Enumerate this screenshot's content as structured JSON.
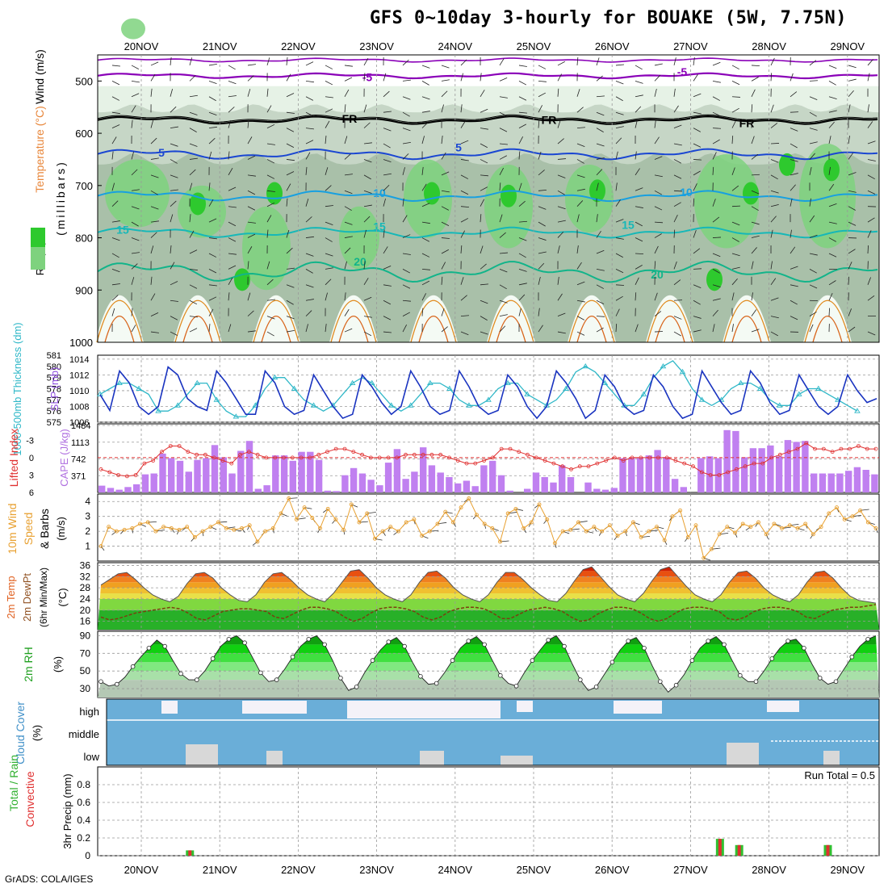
{
  "title": "GFS 0~10day 3-hourly for BOUAKE (5W, 7.75N)",
  "credit": "GrADS: COLA/IGES",
  "colors": {
    "rh1": "#e6f2e6",
    "rh2": "#c6d6c6",
    "rh3": "#a9c0a9",
    "rh4": "#7ed27e",
    "rh5": "#2ec92e",
    "freezing": "#000000",
    "temp_neg": "#8a00b8",
    "temp5": "#1a46d2",
    "temp10": "#18a0e0",
    "temp15": "#16b8b8",
    "temp20": "#12b48a",
    "temp_warm": "#e08a1e",
    "slp": "#1a34c0",
    "thickness": "#30b8c8",
    "lifted": "#e03030",
    "cape": "#c080f0",
    "wind10": "#e8a030",
    "cloud": "#6aaed8",
    "cloud_gap": "#d8d8d8",
    "precip_total": "#30c030",
    "precip_conv": "#e03030"
  },
  "chart_data": [
    {
      "panel": "upper-air",
      "type": "heatmap",
      "ylabel": "(millibars)",
      "legend": [
        "RH (%)",
        "Temperature (°C)",
        "Wind (m/s)"
      ],
      "yticks": [
        "500",
        "600",
        "700",
        "800",
        "900",
        "1000"
      ],
      "ylim": [
        1000,
        450
      ],
      "x_days": [
        "20NOV",
        "21NOV",
        "22NOV",
        "23NOV",
        "24NOV",
        "25NOV",
        "26NOV",
        "27NOV",
        "28NOV",
        "29NOV"
      ],
      "contour_labels": [
        "-5",
        "-5",
        "FR",
        "FR",
        "FR",
        "5",
        "5",
        "10",
        "10",
        "15",
        "15",
        "15",
        "20",
        "20"
      ]
    },
    {
      "panel": "slp-thickness",
      "type": "line",
      "legend": [
        "1000-500mb Thickness (dm)",
        "SLP (mb)"
      ],
      "left_ticks": [
        "575",
        "576",
        "577",
        "578",
        "579",
        "580",
        "581"
      ],
      "right_ticks": [
        "1006",
        "1008",
        "1010",
        "1012",
        "1014"
      ],
      "slp_ylim": [
        1006,
        1014.5
      ],
      "thk_ylim": [
        575,
        581
      ],
      "series": [
        {
          "name": "SLP (mb)",
          "values": [
            1009.5,
            1007.5,
            1012.5,
            1011,
            1008,
            1007,
            1008,
            1013,
            1012,
            1009,
            1008,
            1007.5,
            1012.5,
            1011,
            1009,
            1007,
            1007,
            1012.5,
            1011,
            1008,
            1007,
            1007.5,
            1012,
            1010,
            1008,
            1006.5,
            1007,
            1012,
            1010.5,
            1008.5,
            1007,
            1008,
            1012.5,
            1010.5,
            1008,
            1007,
            1007.5,
            1012.5,
            1010.5,
            1008,
            1007,
            1007.5,
            1012,
            1010.5,
            1008,
            1006.5,
            1008,
            1012.5,
            1011,
            1009,
            1006.5,
            1007.5,
            1012,
            1010.5,
            1008,
            1007,
            1007.5,
            1012,
            1010.5,
            1008,
            1006.5,
            1007,
            1012.5,
            1010.5,
            1008.5,
            1007,
            1007.5,
            1012.5,
            1011,
            1008.5,
            1007,
            1007.5,
            1012,
            1010,
            1008,
            1007,
            1008,
            1012,
            1010,
            1008.5,
            1009
          ]
        },
        {
          "name": "1000-500mb Thickness (dm)",
          "values": [
            577.5,
            578,
            578.5,
            578.5,
            578,
            577.5,
            576,
            576,
            576.5,
            577.5,
            578.5,
            578.5,
            577,
            576,
            575.5,
            575.5,
            576.5,
            578,
            579,
            579,
            578,
            577,
            576.5,
            576,
            576.5,
            577.5,
            578.5,
            579,
            578.5,
            577.5,
            576.5,
            576,
            576.5,
            577.5,
            578.5,
            578.5,
            578,
            577,
            576.5,
            576.5,
            577,
            578,
            578.5,
            578.5,
            577.5,
            577,
            576.5,
            577,
            578,
            579.5,
            580,
            579.5,
            578.5,
            577.5,
            576.5,
            576.5,
            577.5,
            579,
            580,
            580.5,
            579.5,
            578,
            577,
            576.5,
            577,
            578,
            578.5,
            578.5,
            578,
            577,
            576.5,
            576.5,
            577.5,
            578,
            578,
            577.5,
            577,
            576.5,
            576
          ]
        }
      ]
    },
    {
      "panel": "cape-lifted",
      "type": "bar",
      "legend": [
        "Lifted Index",
        "CAPE (J/kg)"
      ],
      "left_ticks": [
        "-3",
        "0",
        "3",
        "6"
      ],
      "right_ticks": [
        "371",
        "742",
        "1113",
        "1484"
      ],
      "cape_ylim": [
        0,
        1484
      ],
      "li_ylim": [
        -5,
        6
      ],
      "series": [
        {
          "name": "CAPE (J/kg)",
          "values": [
            150,
            100,
            60,
            120,
            180,
            400,
            420,
            860,
            760,
            700,
            460,
            720,
            760,
            1050,
            780,
            420,
            920,
            1140,
            80,
            160,
            820,
            820,
            700,
            900,
            900,
            720,
            40,
            30,
            380,
            540,
            420,
            280,
            160,
            660,
            960,
            300,
            460,
            1000,
            600,
            440,
            340,
            200,
            260,
            140,
            600,
            700,
            380,
            40,
            0,
            80,
            440,
            340,
            220,
            600,
            340,
            0,
            220,
            80,
            60,
            100,
            760,
            760,
            760,
            820,
            940,
            780,
            300,
            120,
            0,
            760,
            800,
            760,
            1380,
            1360,
            780,
            980,
            980,
            1040,
            800,
            1160,
            1120,
            1140,
            420,
            420,
            420,
            420,
            480,
            560,
            500,
            400
          ]
        },
        {
          "name": "Lifted Index",
          "values": [
            2,
            2.5,
            3,
            3.2,
            3,
            1,
            0.5,
            -1,
            -2,
            -2,
            -1,
            -0.5,
            -0.5,
            0,
            0.5,
            1,
            -0.5,
            -1,
            -0.5,
            0,
            0,
            0,
            0,
            0,
            0,
            -0.5,
            -1,
            -1.5,
            -1.5,
            -1,
            -0.5,
            0,
            0,
            0,
            0,
            -0.5,
            -0.5,
            -0.5,
            -0.5,
            -0.5,
            0,
            0.5,
            1,
            1,
            0.5,
            0,
            -1.5,
            -1.5,
            -1,
            -0.5,
            0,
            0.5,
            1,
            1.5,
            2,
            1.5,
            1.5,
            1,
            0.5,
            0,
            0.5,
            0,
            0,
            0,
            0,
            0,
            0.5,
            1,
            1.5,
            2.5,
            3,
            3,
            2.5,
            2,
            1.5,
            1,
            1,
            0,
            -0.5,
            -1,
            -1.5,
            -2.5,
            -1.5,
            -1.5,
            -1,
            -1.5,
            -1.5,
            -2,
            -1.5,
            -1.5
          ]
        }
      ]
    },
    {
      "panel": "wind10m",
      "type": "line",
      "legend": [
        "10m Wind",
        "Speed",
        "& Barbs"
      ],
      "ylabel": "(m/s)",
      "ticks": [
        "1",
        "2",
        "3",
        "4"
      ],
      "ylim": [
        0,
        4.5
      ],
      "series": [
        {
          "name": "10m Wind Speed",
          "values": [
            1,
            2.3,
            2,
            2.1,
            2.2,
            2.5,
            2.6,
            2,
            2.3,
            2.2,
            2.1,
            2.3,
            1.6,
            2,
            2.3,
            2.6,
            2.2,
            2.1,
            2.2,
            2.4,
            1.3,
            2,
            2.2,
            3.2,
            4.2,
            2.8,
            3.6,
            2.9,
            2.2,
            3.5,
            2.8,
            2.1,
            3.8,
            2.6,
            3.2,
            1.5,
            2,
            2.3,
            2,
            2.6,
            2.8,
            1.7,
            2,
            2.5,
            3.3,
            2.6,
            3.6,
            4.2,
            3.1,
            2.5,
            2.2,
            1.3,
            3.2,
            3.5,
            2.2,
            2.6,
            3.8,
            2.8,
            1.2,
            2,
            2.1,
            2.6,
            2,
            2.3,
            2,
            2.4,
            1.7,
            2,
            2.6,
            1.6,
            2,
            2.3,
            1.4,
            3,
            3.4,
            1.6,
            2.4,
            0.2,
            0.8,
            1.8,
            2.3,
            1.9,
            2.5,
            2.3,
            2.6,
            1.8,
            2.5,
            2.2,
            2.4,
            2.2,
            2.5,
            1.8,
            2.3,
            3.2,
            3.6,
            2.8,
            3,
            3.4,
            2.6,
            2.2
          ]
        }
      ]
    },
    {
      "panel": "temp2m",
      "type": "area",
      "legend": [
        "2m Temp",
        "2m DewPt",
        "(6hr Min/Max)"
      ],
      "ylabel": "(°C)",
      "ticks": [
        "16",
        "20",
        "24",
        "28",
        "32",
        "36"
      ],
      "ylim": [
        13,
        37
      ],
      "series": [
        {
          "name": "2m Temp",
          "values": [
            29,
            31,
            33,
            33.5,
            31,
            28,
            25.5,
            24,
            23,
            25,
            29.5,
            33,
            33.5,
            31.5,
            28,
            25.5,
            23.5,
            23,
            25.5,
            30,
            33,
            33.5,
            31,
            28,
            25.5,
            24,
            23,
            26,
            30,
            34,
            34.5,
            31.5,
            28,
            25.5,
            24,
            23,
            25.5,
            30,
            33.5,
            34,
            31.5,
            28,
            25.5,
            24,
            23,
            25.5,
            30,
            33.5,
            33.5,
            31,
            28,
            25.5,
            23.5,
            23,
            26,
            30.5,
            34.5,
            35.5,
            32,
            28.5,
            25.5,
            24,
            23,
            26,
            30.5,
            34.5,
            35.5,
            32,
            28.5,
            25.5,
            24,
            23,
            25.5,
            30,
            33.5,
            34,
            31.5,
            28,
            25.5,
            24,
            23,
            25.5,
            30,
            33.5,
            34,
            31.5,
            28,
            25,
            23.5,
            23,
            22.5
          ]
        },
        {
          "name": "2m DewPt",
          "values": [
            17.5,
            16.5,
            17,
            18,
            19,
            19.5,
            20,
            20.5,
            21,
            20.5,
            19,
            17,
            16.5,
            18,
            19.5,
            20,
            20.5,
            20.5,
            20,
            19.5,
            17.5,
            17,
            18.5,
            20,
            21,
            21,
            20.5,
            19.5,
            17.5,
            16,
            17,
            19,
            20.5,
            21,
            21,
            20.5,
            19.5,
            17.5,
            16.5,
            17.5,
            19.5,
            20.5,
            21,
            21,
            20.5,
            19,
            17,
            17,
            18.5,
            20,
            20.5,
            21,
            20.5,
            19.5,
            17.5,
            16,
            16.5,
            18.5,
            20,
            21,
            21,
            20.5,
            19,
            17,
            16,
            17,
            19,
            20.5,
            21,
            21,
            20.5,
            19.5,
            17,
            16.5,
            17.5,
            19.5,
            20.5,
            21,
            21,
            20.5,
            19.5,
            17.5,
            17,
            18.5,
            20,
            20.5,
            21,
            21,
            21.5,
            22
          ]
        }
      ]
    },
    {
      "panel": "rh2m",
      "type": "area",
      "ylabel": "(%)",
      "legend": [
        "2m RH"
      ],
      "ticks": [
        "30",
        "50",
        "70",
        "90"
      ],
      "ylim": [
        20,
        95
      ],
      "series": [
        {
          "name": "2m RH",
          "values": [
            38,
            33,
            35,
            43,
            55,
            66,
            76,
            85,
            78,
            62,
            47,
            40,
            40,
            50,
            64,
            78,
            86,
            90,
            82,
            65,
            48,
            38,
            40,
            52,
            66,
            78,
            86,
            90,
            80,
            62,
            42,
            28,
            32,
            48,
            62,
            74,
            83,
            88,
            78,
            60,
            44,
            35,
            36,
            48,
            62,
            76,
            84,
            89,
            80,
            62,
            45,
            36,
            33,
            48,
            62,
            74,
            85,
            90,
            78,
            58,
            40,
            28,
            32,
            46,
            60,
            74,
            84,
            88,
            76,
            56,
            38,
            26,
            34,
            46,
            62,
            76,
            84,
            89,
            80,
            62,
            45,
            38,
            38,
            50,
            64,
            76,
            84,
            86,
            76,
            58,
            42,
            35,
            38,
            52,
            66,
            78,
            86,
            90
          ]
        }
      ]
    },
    {
      "panel": "cloud",
      "type": "area",
      "legend": [
        "Cloud Cover",
        "(%)"
      ],
      "levels": [
        "high",
        "middle",
        "low"
      ]
    },
    {
      "panel": "precip",
      "type": "bar",
      "legend": [
        "Total / Rain",
        "Convective"
      ],
      "ylabel": "3hr Precip (mm)",
      "ticks": [
        "0",
        "0.2",
        "0.4",
        "0.6",
        "0.8"
      ],
      "ylim": [
        0,
        1.0
      ],
      "run_total": "Run Total = 0.5",
      "events": [
        {
          "day": "20NOV",
          "offset": 0.62,
          "value": 0.06
        },
        {
          "day": "27NOV",
          "offset": 0.375,
          "value": 0.19
        },
        {
          "day": "27NOV",
          "offset": 0.62,
          "value": 0.12
        },
        {
          "day": "28NOV",
          "offset": 0.75,
          "value": 0.12
        }
      ]
    }
  ]
}
